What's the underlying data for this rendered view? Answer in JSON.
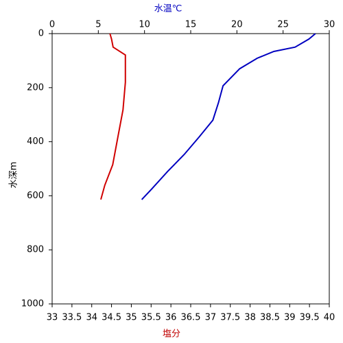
{
  "chart_data": {
    "type": "line",
    "x_label": "塩分",
    "x2_label": "水温℃",
    "y_label": "水深m",
    "x_label_color": "#c00000",
    "x2_label_color": "#0000c0",
    "xlim": [
      33,
      40
    ],
    "xticks": [
      33,
      33.5,
      34,
      34.5,
      35,
      35.5,
      36,
      36.5,
      37,
      37.5,
      38,
      38.5,
      39,
      39.5,
      40
    ],
    "x2lim": [
      0,
      30
    ],
    "x2ticks": [
      0,
      5,
      10,
      15,
      20,
      25,
      30
    ],
    "ylim": [
      0,
      1000
    ],
    "yticks": [
      0,
      200,
      400,
      600,
      800,
      1000
    ],
    "y_inverted": true,
    "series": [
      {
        "color": "#0000c0",
        "axis": "x2",
        "x": [
          28.5,
          27.8,
          26.3,
          24,
          22.2,
          20.3,
          18.5,
          18,
          17.4,
          15.9,
          14.3,
          12.5,
          10.8,
          9.7
        ],
        "values": [
          0,
          20,
          50,
          66,
          91,
          130,
          193,
          256,
          320,
          383,
          447,
          510,
          574,
          614
        ]
      },
      {
        "color": "#d00000",
        "x": [
          34.46,
          34.5,
          34.54,
          34.85,
          34.85,
          34.79,
          34.66,
          34.53,
          34.33,
          34.23
        ],
        "values": [
          0,
          20,
          50,
          79,
          180,
          282,
          383,
          485,
          561,
          614
        ]
      }
    ]
  }
}
